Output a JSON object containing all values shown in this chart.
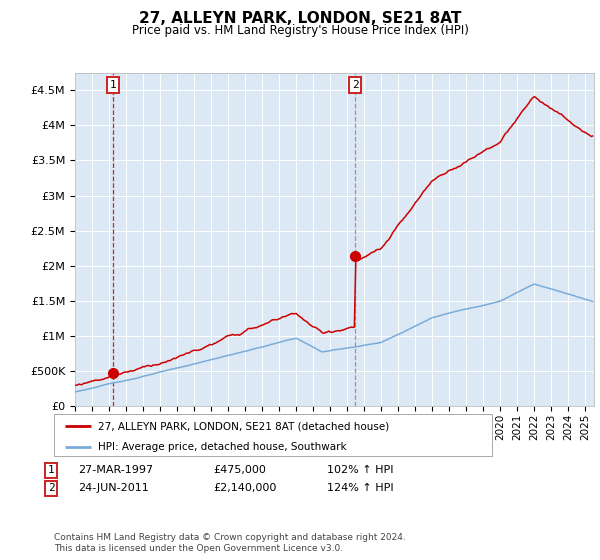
{
  "title": "27, ALLEYN PARK, LONDON, SE21 8AT",
  "subtitle": "Price paid vs. HM Land Registry's House Price Index (HPI)",
  "sale1_label": "27-MAR-1997",
  "sale1_price_str": "£475,000",
  "sale1_hpi": "102% ↑ HPI",
  "sale2_label": "24-JUN-2011",
  "sale2_price_str": "£2,140,000",
  "sale2_hpi": "124% ↑ HPI",
  "legend1": "27, ALLEYN PARK, LONDON, SE21 8AT (detached house)",
  "legend2": "HPI: Average price, detached house, Southwark",
  "footer": "Contains HM Land Registry data © Crown copyright and database right 2024.\nThis data is licensed under the Open Government Licence v3.0.",
  "price_line_color": "#cc0000",
  "hpi_line_color": "#7aacda",
  "sale2_vline_color": "#888888",
  "plot_bg": "#dce9f5",
  "ylim": [
    0,
    4750000
  ],
  "yticks": [
    0,
    500000,
    1000000,
    1500000,
    2000000,
    2500000,
    3000000,
    3500000,
    4000000,
    4500000
  ],
  "ytick_labels": [
    "£0",
    "£500K",
    "£1M",
    "£1.5M",
    "£2M",
    "£2.5M",
    "£3M",
    "£3.5M",
    "£4M",
    "£4.5M"
  ],
  "sale1_x": 1997.22,
  "sale1_y": 475000,
  "sale2_x": 2011.47,
  "sale2_y": 2140000,
  "xlim_start": 1995.0,
  "xlim_end": 2025.5
}
